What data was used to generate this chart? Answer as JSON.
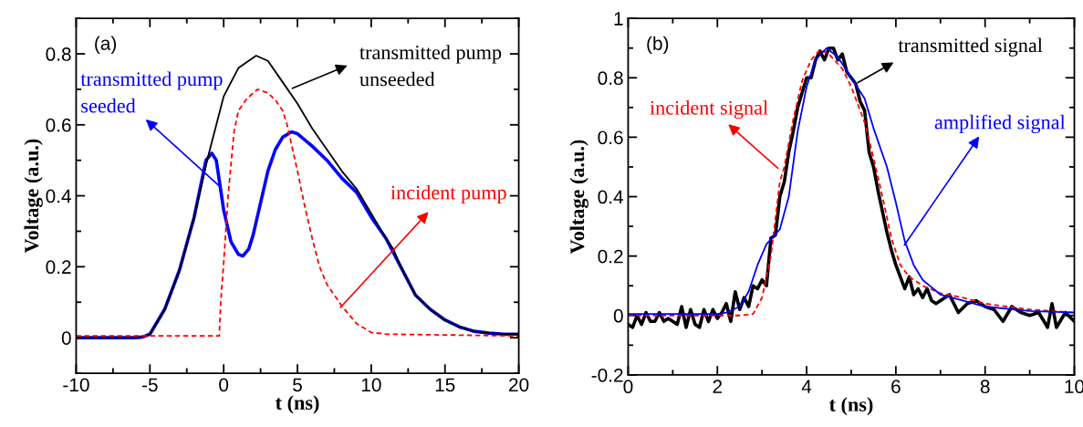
{
  "chart_data": [
    {
      "type": "line",
      "xlabel": "t (ns)",
      "ylabel": "Voltage (a.u.)",
      "xlim": [
        -10,
        20
      ],
      "xticks": [
        -10,
        -5,
        0,
        5,
        10,
        15,
        20
      ],
      "ylim": [
        -0.1,
        0.9
      ],
      "yticks": [
        0,
        0.2,
        0.4,
        0.6,
        0.8
      ],
      "grid": false,
      "legend": false,
      "annotations": [
        "(a)",
        {
          "text": "transmitted pump\nseeded",
          "x": -0.1,
          "y": 0.42
        },
        {
          "text": "transmitted pump\nunseeded",
          "x": 4.5,
          "y": 0.7
        },
        {
          "text": "incident pump",
          "x": 7.8,
          "y": 0.08
        }
      ],
      "series": [
        {
          "color": "#0000ff",
          "line_style": "solid",
          "x": [
            -10,
            -8,
            -6,
            -5.5,
            -5,
            -4,
            -3,
            -2,
            -1.2,
            -0.8,
            -0.5,
            0,
            0.5,
            1,
            1.3,
            1.7,
            2,
            2.5,
            3,
            3.5,
            4,
            4.6,
            5,
            6,
            7,
            8,
            9,
            10,
            11,
            12,
            13,
            14,
            15,
            16,
            17,
            18,
            19,
            20
          ],
          "values": [
            0,
            0,
            0,
            0.002,
            0.01,
            0.08,
            0.19,
            0.34,
            0.5,
            0.52,
            0.5,
            0.36,
            0.27,
            0.235,
            0.23,
            0.25,
            0.29,
            0.38,
            0.47,
            0.53,
            0.565,
            0.58,
            0.575,
            0.54,
            0.5,
            0.45,
            0.41,
            0.34,
            0.28,
            0.2,
            0.12,
            0.08,
            0.05,
            0.03,
            0.018,
            0.013,
            0.01,
            0.01
          ]
        },
        {
          "color": "#000000",
          "line_style": "solid",
          "x": [
            -10,
            -8,
            -6,
            -5.5,
            -5,
            -4,
            -3,
            -2,
            -1,
            0,
            1,
            2.2,
            3,
            4,
            5,
            6,
            7,
            8,
            9,
            10,
            11,
            11.5,
            12,
            13,
            14,
            15,
            16,
            17,
            18,
            19,
            20
          ],
          "values": [
            0,
            0,
            0,
            0.002,
            0.01,
            0.08,
            0.19,
            0.34,
            0.52,
            0.68,
            0.76,
            0.795,
            0.78,
            0.72,
            0.66,
            0.59,
            0.53,
            0.47,
            0.42,
            0.35,
            0.28,
            0.25,
            0.2,
            0.12,
            0.08,
            0.05,
            0.03,
            0.018,
            0.013,
            0.01,
            0.01
          ]
        },
        {
          "color": "#ff0000",
          "line_style": "dashed",
          "x": [
            -10,
            -5,
            -0.3,
            -0.2,
            0,
            0.3,
            0.7,
            1,
            1.5,
            2,
            2.3,
            3,
            3.5,
            4,
            4.3,
            5,
            5.5,
            6,
            6.5,
            7,
            8,
            9,
            10,
            11,
            20
          ],
          "values": [
            0.005,
            0.005,
            0.005,
            0.1,
            0.21,
            0.4,
            0.58,
            0.64,
            0.67,
            0.69,
            0.7,
            0.69,
            0.67,
            0.64,
            0.6,
            0.47,
            0.37,
            0.28,
            0.2,
            0.15,
            0.09,
            0.04,
            0.015,
            0.01,
            0.005
          ]
        }
      ]
    },
    {
      "type": "line",
      "xlabel": "t (ns)",
      "ylabel": "Voltage (a.u.)",
      "xlim": [
        0,
        10
      ],
      "xticks": [
        0,
        2,
        4,
        6,
        8,
        10
      ],
      "ylim": [
        -0.2,
        1
      ],
      "yticks": [
        -0.2,
        0,
        0.2,
        0.4,
        0.6,
        0.8,
        1
      ],
      "grid": false,
      "legend": false,
      "annotations": [
        "(b)",
        {
          "text": "transmitted signal",
          "x": 5.1,
          "y": 0.78
        },
        {
          "text": "incident signal",
          "x": 3.4,
          "y": 0.49
        },
        {
          "text": "amplified signal",
          "x": 6.16,
          "y": 0.23
        }
      ],
      "series": [
        {
          "color": "#000000",
          "line_style": "solid",
          "x": [
            0,
            0.1,
            0.2,
            0.3,
            0.4,
            0.5,
            0.6,
            0.7,
            0.8,
            0.9,
            1.0,
            1.1,
            1.2,
            1.3,
            1.4,
            1.5,
            1.6,
            1.7,
            1.8,
            1.9,
            2.0,
            2.1,
            2.2,
            2.3,
            2.4,
            2.5,
            2.6,
            2.7,
            2.8,
            2.9,
            3.0,
            3.1,
            3.2,
            3.3,
            3.4,
            3.5,
            3.6,
            3.7,
            3.8,
            3.9,
            4.0,
            4.1,
            4.2,
            4.3,
            4.4,
            4.5,
            4.6,
            4.7,
            4.8,
            4.9,
            5.0,
            5.1,
            5.2,
            5.3,
            5.4,
            5.5,
            5.6,
            5.7,
            5.8,
            5.9,
            6.0,
            6.1,
            6.2,
            6.3,
            6.4,
            6.5,
            6.6,
            6.7,
            6.8,
            6.9,
            7.0,
            7.2,
            7.4,
            7.6,
            7.8,
            8.0,
            8.2,
            8.4,
            8.6,
            8.8,
            9.0,
            9.2,
            9.4,
            9.5,
            9.6,
            9.8,
            10
          ],
          "values": [
            -0.03,
            -0.04,
            0.0,
            -0.03,
            0.01,
            -0.02,
            -0.02,
            0.01,
            -0.02,
            -0.01,
            -0.02,
            -0.03,
            0.03,
            -0.04,
            0.02,
            -0.03,
            -0.04,
            0.02,
            -0.02,
            0.02,
            -0.01,
            0.01,
            0.04,
            -0.02,
            0.08,
            0.02,
            0.06,
            0.03,
            0.1,
            0.09,
            0.12,
            0.1,
            0.26,
            0.27,
            0.4,
            0.45,
            0.55,
            0.62,
            0.7,
            0.75,
            0.8,
            0.8,
            0.86,
            0.89,
            0.86,
            0.9,
            0.9,
            0.86,
            0.88,
            0.82,
            0.8,
            0.78,
            0.72,
            0.69,
            0.55,
            0.5,
            0.42,
            0.35,
            0.28,
            0.22,
            0.17,
            0.13,
            0.09,
            0.13,
            0.07,
            0.09,
            0.06,
            0.09,
            0.05,
            0.04,
            0.05,
            0.07,
            0.01,
            0.04,
            0.05,
            0.03,
            0.02,
            -0.02,
            0.03,
            0.01,
            0.0,
            0.01,
            -0.04,
            0.04,
            -0.04,
            0.01,
            -0.02
          ]
        },
        {
          "color": "#ff0000",
          "line_style": "dashed",
          "x": [
            0,
            2,
            2.5,
            2.8,
            3.0,
            3.2,
            3.4,
            3.5,
            3.7,
            3.9,
            4.1,
            4.3,
            4.5,
            4.8,
            5.0,
            5.3,
            5.5,
            5.7,
            5.9,
            6.1,
            6.3,
            6.6,
            7,
            7.5,
            8,
            9,
            10
          ],
          "values": [
            0,
            0,
            0,
            0.005,
            0.06,
            0.2,
            0.45,
            0.5,
            0.66,
            0.79,
            0.86,
            0.895,
            0.88,
            0.83,
            0.77,
            0.65,
            0.53,
            0.4,
            0.26,
            0.17,
            0.13,
            0.1,
            0.075,
            0.06,
            0.04,
            0.02,
            0.01
          ]
        },
        {
          "color": "#0000ff",
          "line_style": "solid",
          "x": [
            0,
            2,
            2.2,
            2.5,
            2.7,
            2.9,
            3.1,
            3.4,
            3.6,
            3.8,
            4.0,
            4.2,
            4.45,
            4.7,
            5.0,
            5.3,
            5.5,
            5.8,
            6.0,
            6.2,
            6.4,
            6.6,
            7,
            7.5,
            8,
            9,
            10
          ],
          "values": [
            0.005,
            0.005,
            0.01,
            0.03,
            0.08,
            0.17,
            0.24,
            0.29,
            0.4,
            0.62,
            0.77,
            0.86,
            0.9,
            0.87,
            0.8,
            0.73,
            0.63,
            0.5,
            0.38,
            0.25,
            0.17,
            0.12,
            0.07,
            0.05,
            0.03,
            0.015,
            0.01
          ]
        }
      ]
    }
  ]
}
